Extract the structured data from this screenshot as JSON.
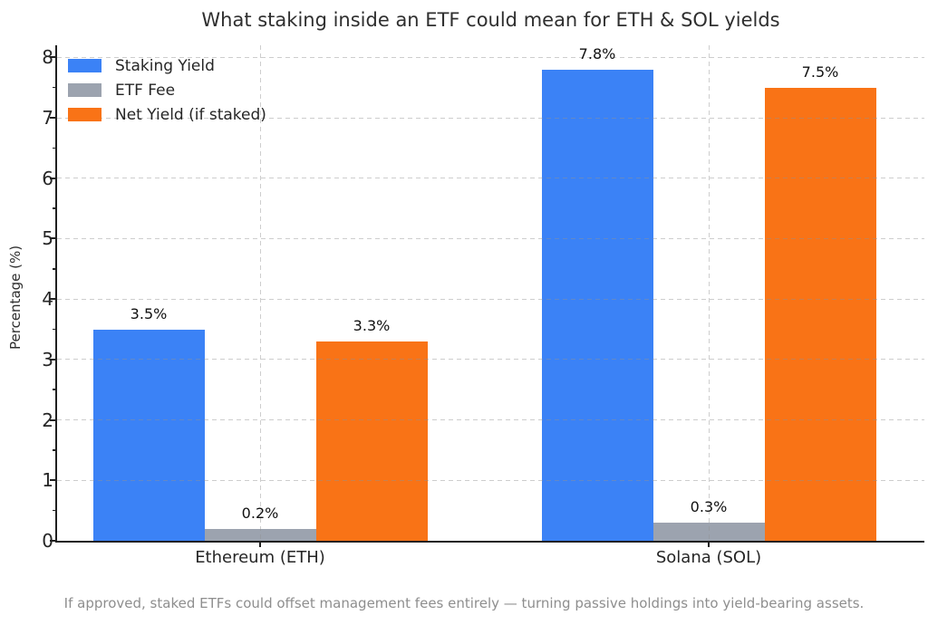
{
  "chart_data": {
    "type": "bar",
    "title": "What staking inside an ETF could mean for ETH & SOL yields",
    "ylabel": "Percentage (%)",
    "xlabel": "",
    "categories": [
      "Ethereum (ETH)",
      "Solana (SOL)"
    ],
    "series": [
      {
        "name": "Staking Yield",
        "color": "#3b82f6",
        "values": [
          3.5,
          7.8
        ],
        "labels": [
          "3.5%",
          "7.8%"
        ]
      },
      {
        "name": "ETF Fee",
        "color": "#9ca3af",
        "values": [
          0.2,
          0.3
        ],
        "labels": [
          "0.2%",
          "0.3%"
        ]
      },
      {
        "name": "Net Yield (if staked)",
        "color": "#f97316",
        "values": [
          3.3,
          7.5
        ],
        "labels": [
          "3.3%",
          "7.5%"
        ]
      }
    ],
    "ylim": [
      0,
      8.2
    ],
    "yticks": [
      0,
      1,
      2,
      3,
      4,
      5,
      6,
      7,
      8
    ],
    "grid": true,
    "grid_style": "dashed",
    "legend_position": "upper left",
    "legend_frame": false,
    "caption": "If approved, staked ETFs could offset management fees entirely — turning passive holdings into yield-bearing assets."
  },
  "colors": {
    "background": "#ffffff",
    "spine": "#202020",
    "grid": "#d6d6d6",
    "title_text": "#2f2f2f",
    "tick_text": "#262626",
    "caption_text": "#8e8e8e"
  }
}
